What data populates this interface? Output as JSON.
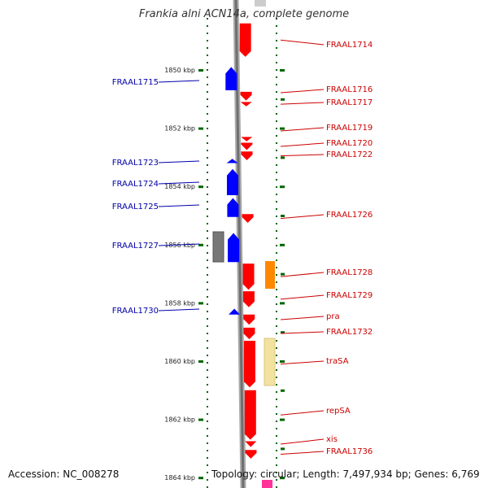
{
  "title": "Frankia alni ACN14a, complete genome",
  "accession": "Accession: NC_008278",
  "topology": "Topology: circular; Length: 7,497,934 bp; Genes: 6,769",
  "colors": {
    "forward": "#ff0000",
    "reverse": "#0000ff",
    "left_label": "#0000aa",
    "right_label": "#cc0000",
    "backbone": "#888888",
    "ticks": "#006600"
  },
  "kbp_ticks": [
    {
      "label": "1850 kbp",
      "kbp": 1850
    },
    {
      "label": "1852 kbp",
      "kbp": 1852
    },
    {
      "label": "1854 kbp",
      "kbp": 1854
    },
    {
      "label": "1856 kbp",
      "kbp": 1856
    },
    {
      "label": "1858 kbp",
      "kbp": 1858
    },
    {
      "label": "1860 kbp",
      "kbp": 1860
    },
    {
      "label": "1862 kbp",
      "kbp": 1862
    },
    {
      "label": "1864 kbp",
      "kbp": 1864
    }
  ],
  "genes_reverse": [
    {
      "name": "FRAAL1715",
      "start": 1849.9,
      "end": 1850.7
    },
    {
      "name": "FRAAL1723",
      "start": 1853.05,
      "end": 1853.2
    },
    {
      "name": "FRAAL1724",
      "start": 1853.4,
      "end": 1854.3
    },
    {
      "name": "FRAAL1725",
      "start": 1854.4,
      "end": 1855.05
    },
    {
      "name": "FRAAL1727",
      "start": 1855.6,
      "end": 1856.6
    },
    {
      "name": "FRAAL1730",
      "start": 1858.2,
      "end": 1858.4
    }
  ],
  "genes_forward": [
    {
      "name": "FRAAL1714",
      "start": 1848.4,
      "end": 1849.55
    },
    {
      "name": "FRAAL1716",
      "start": 1850.75,
      "end": 1851.05
    },
    {
      "name": "FRAAL1717",
      "start": 1851.1,
      "end": 1851.25
    },
    {
      "name": "FRAAL1719",
      "start": 1852.3,
      "end": 1852.45
    },
    {
      "name": "FRAAL1720",
      "start": 1852.5,
      "end": 1852.75
    },
    {
      "name": "FRAAL1722",
      "start": 1852.8,
      "end": 1853.1
    },
    {
      "name": "FRAAL1726",
      "start": 1854.95,
      "end": 1855.25
    },
    {
      "name": "FRAAL1728",
      "start": 1856.65,
      "end": 1857.55
    },
    {
      "name": "FRAAL1729",
      "start": 1857.6,
      "end": 1858.15
    },
    {
      "name": "pra",
      "start": 1858.4,
      "end": 1858.75
    },
    {
      "name": "FRAAL1732",
      "start": 1858.85,
      "end": 1859.25
    },
    {
      "name": "traSA",
      "start": 1859.3,
      "end": 1860.9
    },
    {
      "name": "repSA",
      "start": 1861.0,
      "end": 1862.7
    },
    {
      "name": "xis",
      "start": 1862.75,
      "end": 1862.95
    },
    {
      "name": "FRAAL1736",
      "start": 1863.05,
      "end": 1863.35
    }
  ]
}
